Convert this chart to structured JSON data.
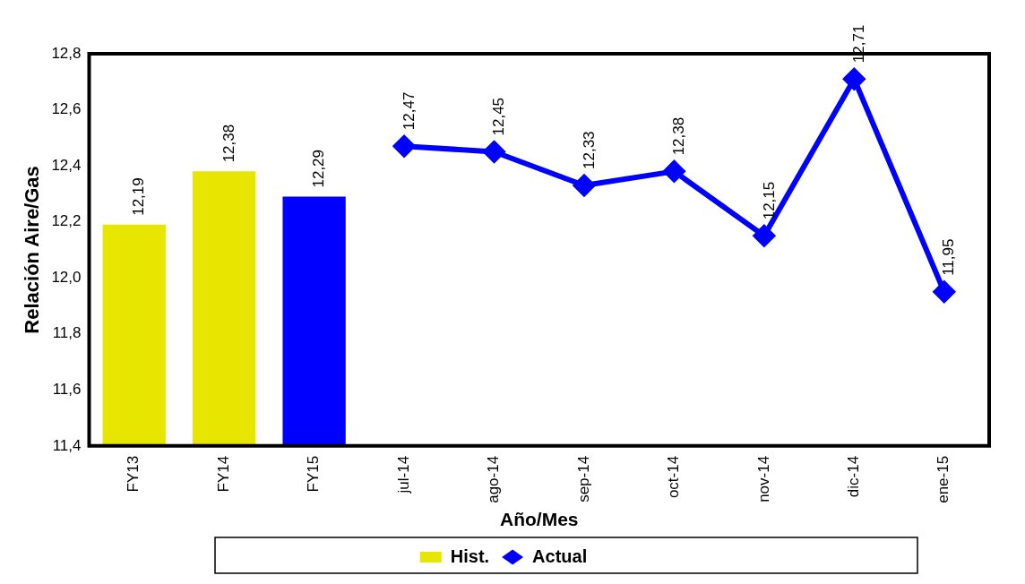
{
  "chart_data": {
    "type": "bar",
    "xlabel": "Año/Mes",
    "ylabel": "Relación Aire/Gas",
    "categories": [
      "FY13",
      "FY14",
      "FY15",
      "jul-14",
      "ago-14",
      "sep-14",
      "oct-14",
      "nov-14",
      "dic-14",
      "ene-15"
    ],
    "series": [
      {
        "name": "Hist.",
        "color": "#e6e600",
        "colors": [
          "#e6e600",
          "#e6e600",
          "#0000ff",
          null,
          null,
          null,
          null,
          null,
          null,
          null
        ],
        "values": [
          12.19,
          12.38,
          12.29,
          null,
          null,
          null,
          null,
          null,
          null,
          null
        ],
        "value_labels": [
          "12,19",
          "12,38",
          "12,29",
          null,
          null,
          null,
          null,
          null,
          null,
          null
        ]
      },
      {
        "name": "Actual",
        "type": "line",
        "color": "#0000ff",
        "marker": "diamond",
        "values": [
          null,
          null,
          null,
          12.47,
          12.45,
          12.33,
          12.38,
          12.15,
          12.71,
          11.95
        ],
        "value_labels": [
          null,
          null,
          null,
          "12,47",
          "12,45",
          "12,33",
          "12,38",
          "12,15",
          "12,71",
          "11,95"
        ]
      }
    ],
    "ylim": [
      11.4,
      12.8
    ],
    "yticks": [
      {
        "value": 11.4,
        "label": "11,4"
      },
      {
        "value": 11.6,
        "label": "11,6"
      },
      {
        "value": 11.8,
        "label": "11,8"
      },
      {
        "value": 12.0,
        "label": "12,0"
      },
      {
        "value": 12.2,
        "label": "12,2"
      },
      {
        "value": 12.4,
        "label": "12,4"
      },
      {
        "value": 12.6,
        "label": "12,6"
      },
      {
        "value": 12.8,
        "label": "12,8"
      }
    ],
    "grid": false,
    "legend": "bottom"
  }
}
